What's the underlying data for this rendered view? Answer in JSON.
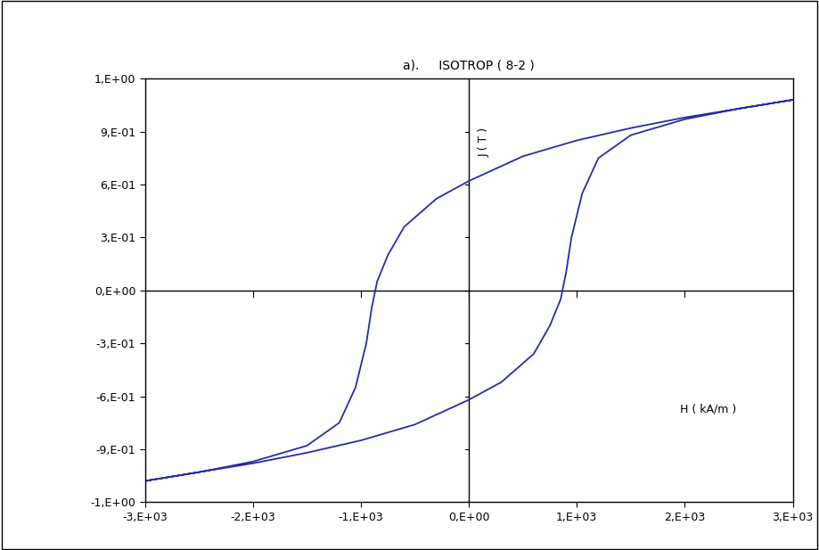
{
  "chart_data": {
    "type": "line",
    "title": "a).     ISOTROP ( 8-2 )",
    "x_label": "H ( kA/m )",
    "y_label": "J ( T )",
    "x": [
      3000,
      2500,
      2000,
      1500,
      1000,
      500,
      0,
      -300,
      -600,
      -750,
      -850,
      -900,
      -950,
      -1050,
      -1200,
      -1500,
      -2000,
      -2500,
      -3000,
      -2500,
      -2000,
      -1500,
      -1000,
      -500,
      0,
      300,
      600,
      750,
      850,
      900,
      950,
      1050,
      1200,
      1500,
      2000,
      2500,
      3000
    ],
    "values": [
      1.08,
      1.03,
      0.98,
      0.92,
      0.85,
      0.76,
      0.62,
      0.52,
      0.36,
      0.2,
      0.05,
      -0.1,
      -0.3,
      -0.55,
      -0.75,
      -0.88,
      -0.97,
      -1.03,
      -1.08,
      -1.03,
      -0.98,
      -0.92,
      -0.85,
      -0.76,
      -0.62,
      -0.52,
      -0.36,
      -0.2,
      -0.05,
      0.1,
      0.3,
      0.55,
      0.75,
      0.88,
      0.97,
      1.03,
      1.08
    ],
    "color": "#2b2ba6",
    "xlim": [
      -3000,
      3000
    ],
    "xticks": [
      {
        "value": -3000,
        "label": "-3,E+03"
      },
      {
        "value": -2000,
        "label": "-2,E+03"
      },
      {
        "value": -1000,
        "label": "-1,E+03"
      },
      {
        "value": 0,
        "label": "0,E+00"
      },
      {
        "value": 1000,
        "label": "1,E+03"
      },
      {
        "value": 2000,
        "label": "2,E+03"
      },
      {
        "value": 3000,
        "label": "3,E+03"
      }
    ],
    "ylim": [
      -1.2,
      1.2
    ],
    "yticks": [
      {
        "value": -1.2,
        "label": "-1,E+00"
      },
      {
        "value": -0.9,
        "label": "-9,E-01"
      },
      {
        "value": -0.6,
        "label": "-6,E-01"
      },
      {
        "value": -0.3,
        "label": "-3,E-01"
      },
      {
        "value": 0,
        "label": "0,E+00"
      },
      {
        "value": 0.3,
        "label": "3,E-01"
      },
      {
        "value": 0.6,
        "label": "6,E-01"
      },
      {
        "value": 0.9,
        "label": "9,E-01"
      },
      {
        "value": 1.2,
        "label": "1,E+00"
      }
    ],
    "grid": false
  }
}
